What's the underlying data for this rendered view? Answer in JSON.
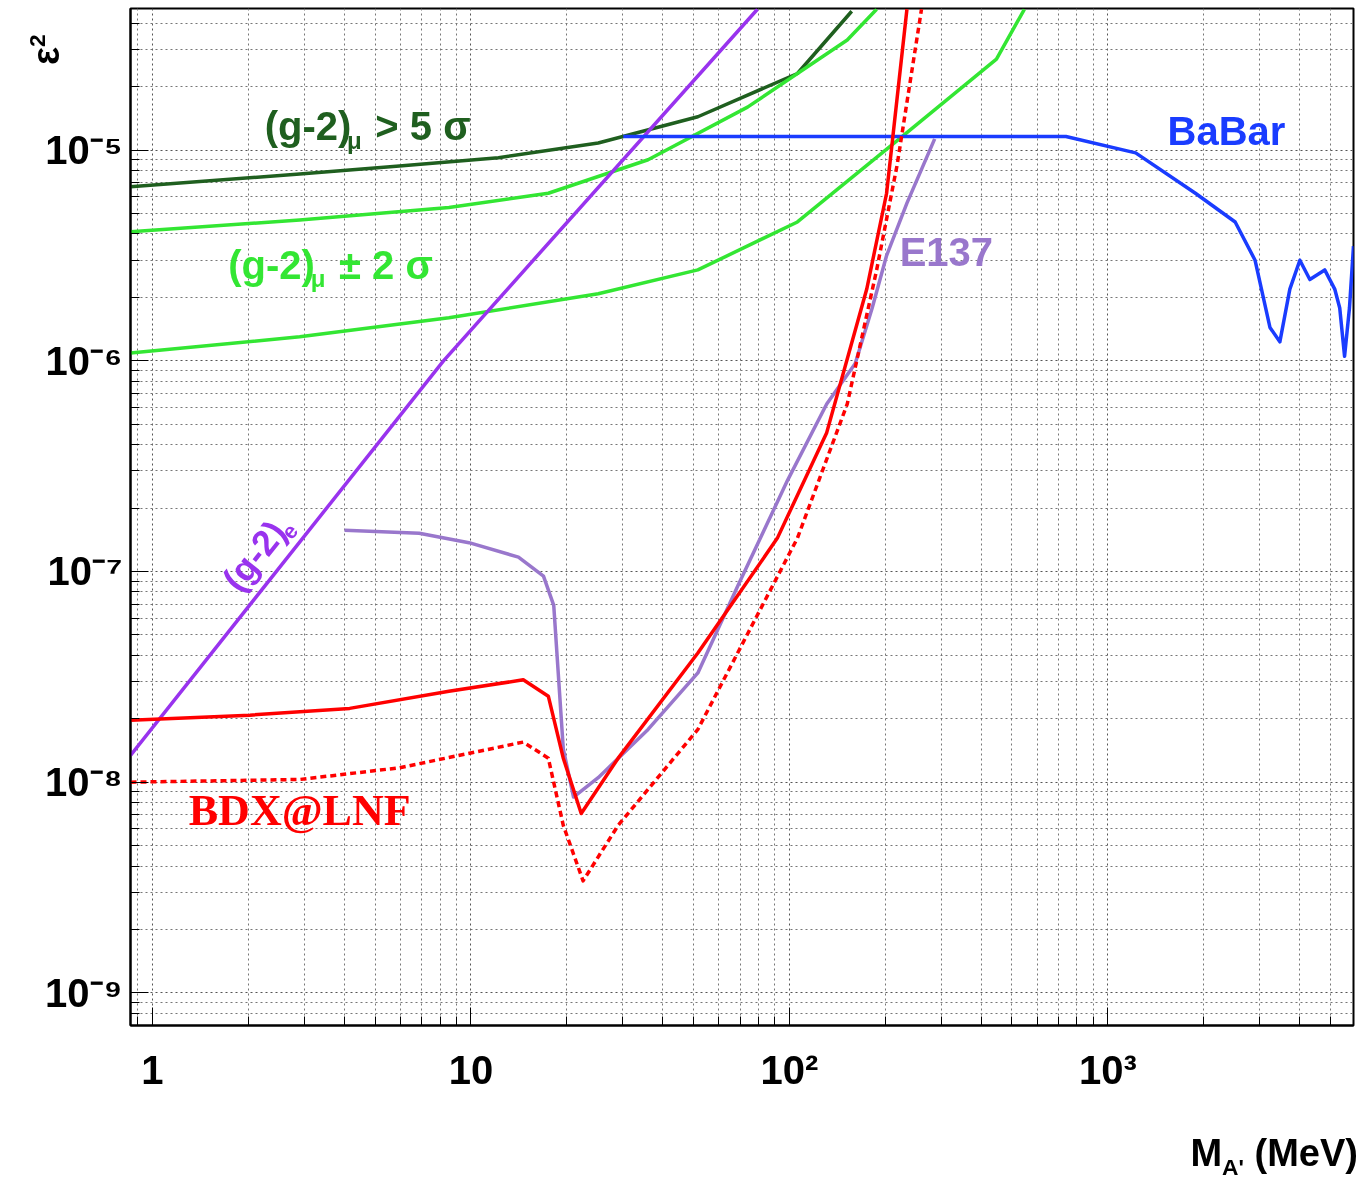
{
  "chart_data": {
    "type": "line",
    "xlabel": "M$_{A'}$ (MeV)",
    "ylabel": "ε$^{2}$",
    "log": "xy",
    "xlim": [
      0.853,
      5910
    ],
    "ylim": [
      7e-10,
      4.7e-05
    ],
    "xticks": [
      1,
      10,
      {
        "value": 100,
        "label": "10²"
      },
      {
        "value": 1000,
        "label": "10³"
      }
    ],
    "yticks": [
      {
        "value": 1e-09,
        "label": "10⁻⁹"
      },
      {
        "value": 1e-08,
        "label": "10⁻⁸"
      },
      {
        "value": 1e-07,
        "label": "10⁻⁷"
      },
      {
        "value": 1e-06,
        "label": "10⁻⁶"
      },
      {
        "value": 1e-05,
        "label": "10⁻⁵"
      }
    ],
    "grid": true,
    "line_style": "solid",
    "series": [
      {
        "name": "(g-2)$_{μ}$ > 5 σ",
        "color": "#1f5f1f",
        "x": [
          0.853,
          2.9,
          5.96,
          12.2,
          25.1,
          51.6,
          106,
          157
        ],
        "values": [
          6.7e-06,
          7.7e-06,
          8.4e-06,
          9.2e-06,
          1.08e-05,
          1.44e-05,
          2.31e-05,
          4.56e-05
        ]
      },
      {
        "name": "(g-2)$_{μ}$ ± 2 σ",
        "color": "#33e633",
        "x": [
          0.853,
          2.9,
          8.53,
          17.5,
          36,
          73.9,
          152,
          188
        ],
        "values": [
          4.1e-06,
          4.66e-06,
          5.34e-06,
          6.24e-06,
          9e-06,
          1.6e-05,
          3.33e-05,
          4.66e-05
        ]
      },
      {
        "color": "#33e633",
        "x": [
          0.853,
          2.9,
          8.53,
          25.1,
          51.6,
          106,
          218,
          447,
          547
        ],
        "values": [
          1.09e-06,
          1.3e-06,
          1.6e-06,
          2.08e-06,
          2.7e-06,
          4.56e-06,
          1.11e-05,
          2.7e-05,
          4.66e-05
        ]
      },
      {
        "name": "(g-2)$_{e}$",
        "color": "#9933ee",
        "x": [
          0.853,
          8.2,
          79.4
        ],
        "values": [
          1.34e-08,
          1e-06,
          4.66e-05
        ]
      },
      {
        "name": "BaBar",
        "color": "#1a3cff",
        "x": [
          30.1,
          739,
          1223,
          1884,
          2512,
          2901,
          3230,
          3470,
          3730,
          4010,
          4310,
          4800,
          5160,
          5350,
          5540,
          5740,
          5910
        ],
        "values": [
          1.16e-05,
          1.16e-05,
          9.7e-06,
          6.24e-06,
          4.56e-06,
          3e-06,
          1.44e-06,
          1.23e-06,
          2.19e-06,
          3e-06,
          2.43e-06,
          2.7e-06,
          2.19e-06,
          1.78e-06,
          1.05e-06,
          1.78e-06,
          3.5e-06
        ]
      },
      {
        "name": "E137",
        "color": "#9977cc",
        "x": [
          4.01,
          6.88,
          9.86,
          14.1,
          16.9,
          18.2,
          18.8,
          19.5,
          21.0,
          25.1,
          36,
          51.6,
          68.8,
          98.6,
          131,
          161,
          182,
          202,
          234,
          286
        ],
        "values": [
          1.57e-07,
          1.52e-07,
          1.37e-07,
          1.17e-07,
          9.5e-08,
          6.9e-08,
          3.3e-08,
          1.44e-08,
          8.5e-09,
          1.05e-08,
          1.78e-08,
          3.3e-08,
          8.5e-08,
          2.7e-07,
          6.24e-07,
          9.7e-07,
          1.78e-06,
          3.16e-06,
          5.6e-06,
          1.13e-05
        ]
      },
      {
        "name": "BDX@LNF",
        "color": "#ff0000",
        "x": [
          0.853,
          2.02,
          4.16,
          8.53,
          14.6,
          17.5,
          19.5,
          22.2,
          29.0,
          51.6,
          91.7,
          131,
          175,
          202,
          234
        ],
        "values": [
          1.97e-08,
          2.08e-08,
          2.24e-08,
          2.7e-08,
          3.06e-08,
          2.56e-08,
          1.3e-08,
          7.1e-09,
          1.3e-08,
          4.1e-08,
          1.44e-07,
          4.56e-07,
          2.19e-06,
          6.24e-06,
          4.66e-05
        ]
      },
      {
        "color": "#ff0000",
        "line_style": "dashed",
        "x": [
          0.853,
          2.9,
          5.96,
          14.6,
          17.5,
          19.5,
          22.5,
          29.0,
          51.6,
          106,
          152,
          188,
          218,
          260
        ],
        "values": [
          1e-08,
          1.03e-08,
          1.17e-08,
          1.55e-08,
          1.3e-08,
          6.24e-09,
          3.4e-09,
          6.24e-09,
          1.78e-08,
          1.44e-07,
          6.24e-07,
          2.7e-06,
          8.5e-06,
          4.66e-05
        ]
      }
    ]
  }
}
